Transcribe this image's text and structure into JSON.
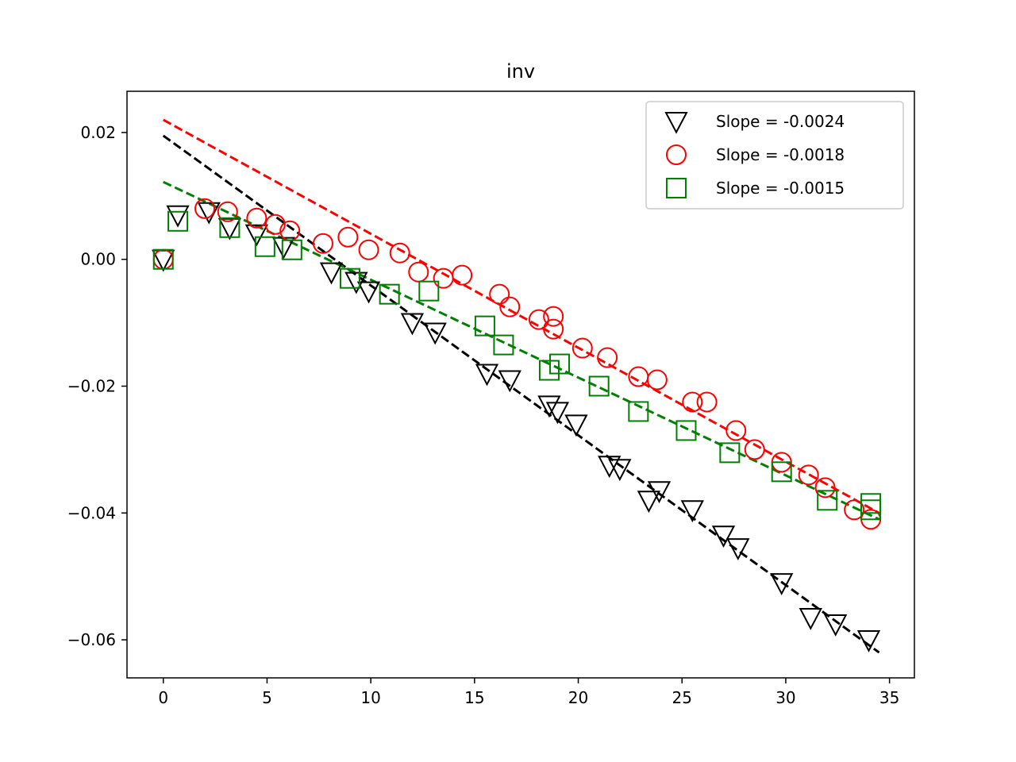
{
  "chart_data": {
    "type": "scatter",
    "title": "inv",
    "xlabel": "",
    "ylabel": "",
    "xlim": [
      -1.75,
      36.2
    ],
    "ylim": [
      -0.066,
      0.0265
    ],
    "x_ticks": [
      0,
      5,
      10,
      15,
      20,
      25,
      30,
      35
    ],
    "x_tick_labels": [
      "0",
      "5",
      "10",
      "15",
      "20",
      "25",
      "30",
      "35"
    ],
    "y_ticks": [
      0.02,
      0.0,
      -0.02,
      -0.04,
      -0.06
    ],
    "y_tick_labels": [
      "0.02",
      "0.00",
      "−0.02",
      "−0.04",
      "−0.06"
    ],
    "grid": false,
    "legend_position": "top-right",
    "series": [
      {
        "name": "Slope = -0.0024",
        "marker": "triangle-down",
        "color": "#000000",
        "x": [
          0.0,
          0.7,
          2.2,
          3.2,
          4.5,
          5.8,
          8.1,
          9.3,
          9.9,
          12.0,
          13.1,
          15.6,
          16.7,
          18.6,
          19.0,
          19.9,
          21.5,
          22.0,
          23.4,
          23.9,
          25.5,
          27.0,
          27.7,
          29.8,
          31.2,
          32.4,
          34.0
        ],
        "y": [
          0.0,
          0.007,
          0.0075,
          0.005,
          0.004,
          0.002,
          -0.002,
          -0.0035,
          -0.005,
          -0.01,
          -0.0115,
          -0.018,
          -0.019,
          -0.023,
          -0.024,
          -0.026,
          -0.0325,
          -0.033,
          -0.038,
          -0.0365,
          -0.0395,
          -0.0435,
          -0.0455,
          -0.051,
          -0.0565,
          -0.0575,
          -0.06
        ]
      },
      {
        "name": "Slope = -0.0018",
        "marker": "circle",
        "color": "#ff0000",
        "x": [
          0.0,
          2.0,
          3.1,
          4.5,
          5.4,
          6.1,
          7.7,
          8.9,
          9.9,
          11.4,
          12.3,
          13.5,
          14.4,
          16.2,
          16.7,
          18.1,
          18.8,
          18.8,
          20.2,
          21.4,
          22.9,
          23.8,
          25.5,
          26.2,
          27.6,
          28.5,
          29.8,
          31.1,
          31.9,
          33.3,
          34.1
        ],
        "y": [
          0.0,
          0.008,
          0.0075,
          0.0065,
          0.0055,
          0.0045,
          0.0025,
          0.0035,
          0.0015,
          0.001,
          -0.002,
          -0.003,
          -0.0025,
          -0.0055,
          -0.0075,
          -0.0095,
          -0.009,
          -0.011,
          -0.014,
          -0.0155,
          -0.0185,
          -0.019,
          -0.0225,
          -0.0225,
          -0.027,
          -0.03,
          -0.032,
          -0.034,
          -0.036,
          -0.0395,
          -0.041
        ]
      },
      {
        "name": "Slope = -0.0015",
        "marker": "square",
        "color": "#008000",
        "x": [
          0.0,
          0.7,
          3.2,
          4.9,
          6.2,
          9.0,
          10.9,
          12.8,
          15.5,
          16.4,
          18.6,
          19.1,
          21.0,
          22.9,
          25.2,
          27.3,
          29.8,
          32.0,
          34.1,
          34.1
        ],
        "y": [
          0.0,
          0.006,
          0.005,
          0.002,
          0.0015,
          -0.003,
          -0.0055,
          -0.005,
          -0.0105,
          -0.0135,
          -0.0175,
          -0.0165,
          -0.02,
          -0.024,
          -0.027,
          -0.0305,
          -0.0335,
          -0.038,
          -0.0385,
          -0.0395
        ]
      }
    ],
    "fit_lines": [
      {
        "color": "#000000",
        "x": [
          0.0,
          34.5
        ],
        "y": [
          0.0195,
          -0.062
        ]
      },
      {
        "color": "#ff0000",
        "x": [
          0.0,
          34.5
        ],
        "y": [
          0.022,
          -0.04
        ]
      },
      {
        "color": "#008000",
        "x": [
          0.0,
          34.5
        ],
        "y": [
          0.0122,
          -0.041
        ]
      }
    ]
  }
}
